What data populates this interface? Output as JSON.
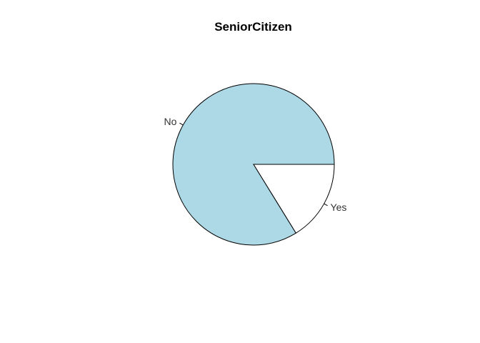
{
  "chart_data": {
    "type": "pie",
    "title": "SeniorCitizen",
    "categories": [
      "No",
      "Yes"
    ],
    "values": [
      83.8,
      16.2
    ],
    "colors": [
      "#add8e6",
      "#ffffff"
    ],
    "border_color": "#000000",
    "start_angle": 0,
    "direction": "counterclockwise",
    "legend": "none"
  }
}
